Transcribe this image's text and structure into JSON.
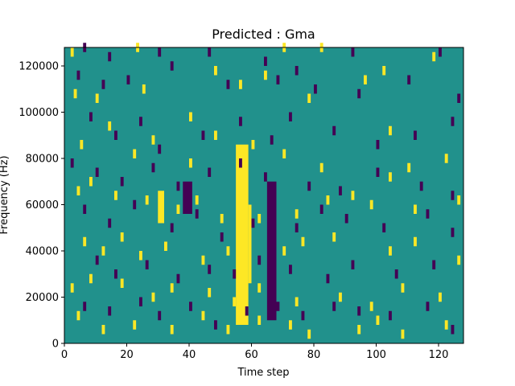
{
  "chart_data": {
    "type": "heatmap",
    "title": "Predicted : Gma",
    "xlabel": "Time step",
    "ylabel": "Frequency (Hz)",
    "xlim": [
      0,
      128
    ],
    "ylim": [
      0,
      128000
    ],
    "x_ticks": [
      0,
      20,
      40,
      60,
      80,
      100,
      120
    ],
    "y_ticks": [
      0,
      20000,
      40000,
      60000,
      80000,
      100000,
      120000
    ],
    "grid": false,
    "legend": "none",
    "n_time_steps": 128,
    "n_freq_bins": 64,
    "colors": {
      "background": "#21918c",
      "high": "#fde725",
      "low": "#440154"
    },
    "vertical_bands": [
      {
        "value": "high",
        "x0": 55,
        "x1": 59,
        "y0": 8000,
        "y1": 86000
      },
      {
        "value": "high",
        "x0": 59,
        "x1": 60,
        "y0": 26000,
        "y1": 60000
      },
      {
        "value": "low",
        "x0": 65,
        "x1": 68,
        "y0": 10000,
        "y1": 70000
      },
      {
        "value": "high",
        "x0": 30,
        "x1": 32,
        "y0": 52000,
        "y1": 66000
      },
      {
        "value": "low",
        "x0": 38,
        "x1": 41,
        "y0": 56000,
        "y1": 70000
      }
    ],
    "yellow_cells": [
      [
        2,
        124000
      ],
      [
        23,
        126000
      ],
      [
        48,
        116000
      ],
      [
        70,
        126000
      ],
      [
        82,
        126000
      ],
      [
        102,
        116000
      ],
      [
        118,
        122000
      ],
      [
        3,
        106000
      ],
      [
        10,
        104000
      ],
      [
        25,
        108000
      ],
      [
        40,
        96000
      ],
      [
        56,
        110000
      ],
      [
        64,
        114000
      ],
      [
        78,
        104000
      ],
      [
        96,
        112000
      ],
      [
        104,
        90000
      ],
      [
        5,
        84000
      ],
      [
        14,
        92000
      ],
      [
        22,
        80000
      ],
      [
        28,
        86000
      ],
      [
        40,
        76000
      ],
      [
        48,
        88000
      ],
      [
        60,
        84000
      ],
      [
        70,
        80000
      ],
      [
        82,
        74000
      ],
      [
        92,
        62000
      ],
      [
        104,
        70000
      ],
      [
        110,
        74000
      ],
      [
        122,
        78000
      ],
      [
        4,
        64000
      ],
      [
        8,
        68000
      ],
      [
        16,
        62000
      ],
      [
        26,
        60000
      ],
      [
        36,
        56000
      ],
      [
        42,
        60000
      ],
      [
        50,
        52000
      ],
      [
        62,
        52000
      ],
      [
        74,
        54000
      ],
      [
        84,
        60000
      ],
      [
        98,
        58000
      ],
      [
        112,
        56000
      ],
      [
        126,
        60000
      ],
      [
        6,
        42000
      ],
      [
        12,
        38000
      ],
      [
        18,
        44000
      ],
      [
        24,
        36000
      ],
      [
        32,
        40000
      ],
      [
        44,
        34000
      ],
      [
        52,
        38000
      ],
      [
        70,
        38000
      ],
      [
        76,
        42000
      ],
      [
        86,
        44000
      ],
      [
        104,
        38000
      ],
      [
        112,
        42000
      ],
      [
        126,
        34000
      ],
      [
        2,
        22000
      ],
      [
        8,
        26000
      ],
      [
        18,
        24000
      ],
      [
        28,
        18000
      ],
      [
        34,
        22000
      ],
      [
        46,
        20000
      ],
      [
        54,
        16000
      ],
      [
        62,
        22000
      ],
      [
        74,
        16000
      ],
      [
        88,
        18000
      ],
      [
        98,
        14000
      ],
      [
        108,
        22000
      ],
      [
        120,
        18000
      ],
      [
        4,
        10000
      ],
      [
        12,
        4000
      ],
      [
        22,
        6000
      ],
      [
        34,
        4000
      ],
      [
        44,
        10000
      ],
      [
        52,
        4000
      ],
      [
        62,
        8000
      ],
      [
        72,
        6000
      ],
      [
        78,
        2000
      ],
      [
        94,
        4000
      ],
      [
        100,
        8000
      ],
      [
        108,
        2000
      ],
      [
        122,
        6000
      ]
    ],
    "purple_cells": [
      [
        6,
        126000
      ],
      [
        14,
        122000
      ],
      [
        30,
        124000
      ],
      [
        46,
        124000
      ],
      [
        64,
        120000
      ],
      [
        74,
        116000
      ],
      [
        92,
        124000
      ],
      [
        120,
        124000
      ],
      [
        4,
        114000
      ],
      [
        12,
        110000
      ],
      [
        20,
        112000
      ],
      [
        34,
        118000
      ],
      [
        52,
        110000
      ],
      [
        68,
        112000
      ],
      [
        80,
        108000
      ],
      [
        94,
        106000
      ],
      [
        110,
        112000
      ],
      [
        126,
        104000
      ],
      [
        8,
        96000
      ],
      [
        16,
        88000
      ],
      [
        24,
        94000
      ],
      [
        30,
        82000
      ],
      [
        44,
        88000
      ],
      [
        56,
        94000
      ],
      [
        66,
        86000
      ],
      [
        72,
        96000
      ],
      [
        86,
        90000
      ],
      [
        100,
        84000
      ],
      [
        112,
        88000
      ],
      [
        124,
        94000
      ],
      [
        2,
        76000
      ],
      [
        10,
        72000
      ],
      [
        18,
        68000
      ],
      [
        28,
        74000
      ],
      [
        36,
        66000
      ],
      [
        46,
        72000
      ],
      [
        56,
        76000
      ],
      [
        64,
        70000
      ],
      [
        78,
        66000
      ],
      [
        88,
        64000
      ],
      [
        100,
        72000
      ],
      [
        114,
        66000
      ],
      [
        124,
        62000
      ],
      [
        6,
        56000
      ],
      [
        14,
        50000
      ],
      [
        22,
        58000
      ],
      [
        34,
        48000
      ],
      [
        42,
        54000
      ],
      [
        50,
        44000
      ],
      [
        60,
        50000
      ],
      [
        74,
        48000
      ],
      [
        82,
        56000
      ],
      [
        90,
        52000
      ],
      [
        102,
        48000
      ],
      [
        116,
        54000
      ],
      [
        124,
        46000
      ],
      [
        10,
        34000
      ],
      [
        16,
        28000
      ],
      [
        26,
        32000
      ],
      [
        36,
        26000
      ],
      [
        46,
        30000
      ],
      [
        54,
        28000
      ],
      [
        62,
        34000
      ],
      [
        72,
        30000
      ],
      [
        84,
        26000
      ],
      [
        92,
        32000
      ],
      [
        106,
        28000
      ],
      [
        118,
        32000
      ],
      [
        6,
        14000
      ],
      [
        14,
        12000
      ],
      [
        24,
        16000
      ],
      [
        30,
        10000
      ],
      [
        40,
        14000
      ],
      [
        48,
        6000
      ],
      [
        58,
        12000
      ],
      [
        68,
        14000
      ],
      [
        76,
        10000
      ],
      [
        86,
        14000
      ],
      [
        94,
        12000
      ],
      [
        104,
        10000
      ],
      [
        116,
        14000
      ],
      [
        124,
        4000
      ]
    ]
  }
}
